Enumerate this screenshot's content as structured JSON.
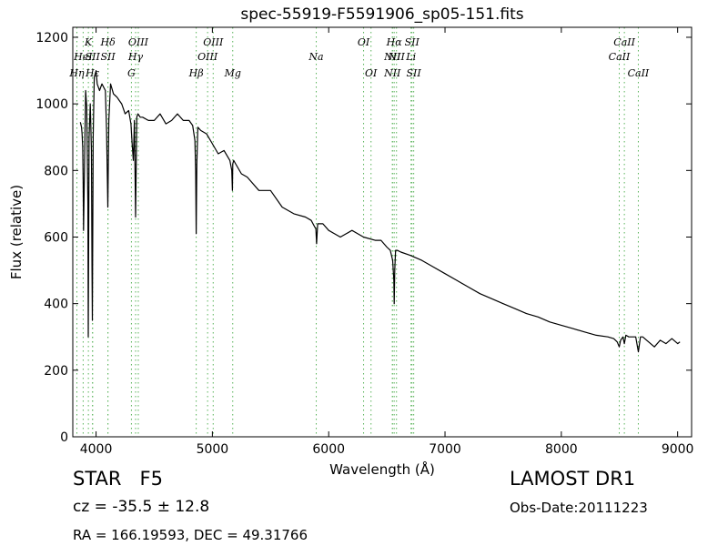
{
  "chart_data": {
    "type": "line",
    "title": "spec-55919-F5591906_sp05-151.fits",
    "xlabel": "Wavelength (Å)",
    "ylabel": "Flux (relative)",
    "xlim": [
      3800,
      9120
    ],
    "ylim": [
      0,
      1230
    ],
    "x_ticks": [
      4000,
      5000,
      6000,
      7000,
      8000,
      9000
    ],
    "y_ticks": [
      0,
      200,
      400,
      600,
      800,
      1000,
      1200
    ],
    "grid": false,
    "series": [
      {
        "color": "#000000",
        "x": [
          3865,
          3875,
          3880,
          3885,
          3889,
          3892,
          3900,
          3910,
          3920,
          3930,
          3933,
          3940,
          3950,
          3960,
          3965,
          3968,
          3975,
          3985,
          4000,
          4010,
          4030,
          4050,
          4080,
          4090,
          4101,
          4110,
          4125,
          4150,
          4180,
          4200,
          4220,
          4250,
          4280,
          4300,
          4310,
          4320,
          4330,
          4340,
          4350,
          4360,
          4380,
          4400,
          4450,
          4500,
          4550,
          4600,
          4650,
          4700,
          4750,
          4800,
          4830,
          4850,
          4856,
          4861,
          4866,
          4875,
          4900,
          4950,
          5000,
          5050,
          5100,
          5150,
          5167,
          5172,
          5175,
          5183,
          5200,
          5250,
          5300,
          5400,
          5500,
          5600,
          5700,
          5800,
          5850,
          5880,
          5890,
          5896,
          5905,
          5950,
          6000,
          6100,
          6200,
          6300,
          6400,
          6450,
          6500,
          6530,
          6550,
          6560,
          6563,
          6568,
          6575,
          6590,
          6620,
          6700,
          6800,
          6900,
          7000,
          7100,
          7200,
          7300,
          7400,
          7500,
          7600,
          7700,
          7800,
          7900,
          8000,
          8100,
          8200,
          8300,
          8400,
          8450,
          8480,
          8498,
          8510,
          8530,
          8542,
          8555,
          8580,
          8640,
          8662,
          8680,
          8700,
          8750,
          8800,
          8850,
          8900,
          8950,
          9000,
          9020
        ],
        "y": [
          945,
          930,
          910,
          870,
          760,
          620,
          800,
          1040,
          990,
          700,
          300,
          900,
          1000,
          860,
          510,
          350,
          900,
          1080,
          1100,
          1060,
          1040,
          1060,
          1040,
          920,
          690,
          950,
          1060,
          1030,
          1020,
          1010,
          1000,
          970,
          980,
          940,
          880,
          830,
          950,
          660,
          960,
          970,
          960,
          960,
          950,
          950,
          970,
          940,
          950,
          970,
          950,
          950,
          935,
          890,
          800,
          610,
          820,
          930,
          920,
          910,
          880,
          850,
          860,
          830,
          800,
          740,
          820,
          830,
          820,
          790,
          780,
          740,
          740,
          690,
          670,
          660,
          650,
          630,
          625,
          580,
          640,
          640,
          620,
          600,
          620,
          600,
          590,
          590,
          570,
          560,
          530,
          470,
          400,
          500,
          560,
          560,
          555,
          545,
          530,
          510,
          490,
          470,
          450,
          430,
          415,
          400,
          385,
          370,
          360,
          345,
          335,
          325,
          315,
          305,
          300,
          295,
          285,
          270,
          290,
          300,
          280,
          305,
          300,
          300,
          255,
          300,
          300,
          285,
          270,
          290,
          280,
          295,
          280,
          285
        ]
      }
    ],
    "lines": [
      {
        "wl": 3835,
        "label": "Hη",
        "row": 3
      },
      {
        "wl": 3889,
        "label": "HeI",
        "row": 2
      },
      {
        "wl": 3934,
        "label": "K",
        "row": 1
      },
      {
        "wl": 3970,
        "label": "Hε",
        "row": 3
      },
      {
        "wl": 3970,
        "label": "SII",
        "row": 2
      },
      {
        "wl": 4102,
        "label": "Hδ",
        "row": 1
      },
      {
        "wl": 4102,
        "label": "SII",
        "row": 2
      },
      {
        "wl": 4304,
        "label": "G",
        "row": 3
      },
      {
        "wl": 4340,
        "label": "Hγ",
        "row": 2
      },
      {
        "wl": 4363,
        "label": "OIII",
        "row": 1
      },
      {
        "wl": 4861,
        "label": "Hβ",
        "row": 3
      },
      {
        "wl": 4959,
        "label": "OIII",
        "row": 2
      },
      {
        "wl": 5007,
        "label": "OIII",
        "row": 1
      },
      {
        "wl": 5175,
        "label": "Mg",
        "row": 3
      },
      {
        "wl": 5893,
        "label": "Na",
        "row": 2
      },
      {
        "wl": 6300,
        "label": "OI",
        "row": 1
      },
      {
        "wl": 6364,
        "label": "OI",
        "row": 3
      },
      {
        "wl": 6548,
        "label": "NII",
        "row": 2
      },
      {
        "wl": 6548,
        "label": "NII",
        "row": 3
      },
      {
        "wl": 6563,
        "label": "Hα",
        "row": 1
      },
      {
        "wl": 6583,
        "label": "NII",
        "row": 2
      },
      {
        "wl": 6708,
        "label": "Li",
        "row": 2
      },
      {
        "wl": 6716,
        "label": "SII",
        "row": 1
      },
      {
        "wl": 6731,
        "label": "SII",
        "row": 3
      },
      {
        "wl": 8498,
        "label": "CaII",
        "row": 2
      },
      {
        "wl": 8542,
        "label": "CaII",
        "row": 1
      },
      {
        "wl": 8662,
        "label": "CaII",
        "row": 3
      }
    ]
  },
  "info": {
    "object_type": "STAR",
    "subclass": "F5",
    "redshift": "cz = -35.5 ± 12.8",
    "coords": "RA = 166.19593, DEC = 49.31766",
    "survey": "LAMOST DR1",
    "obs_date": "Obs-Date:20111223"
  },
  "colors": {
    "spectrum": "#000000",
    "line_marker": "#59b359",
    "axis": "#000000"
  }
}
